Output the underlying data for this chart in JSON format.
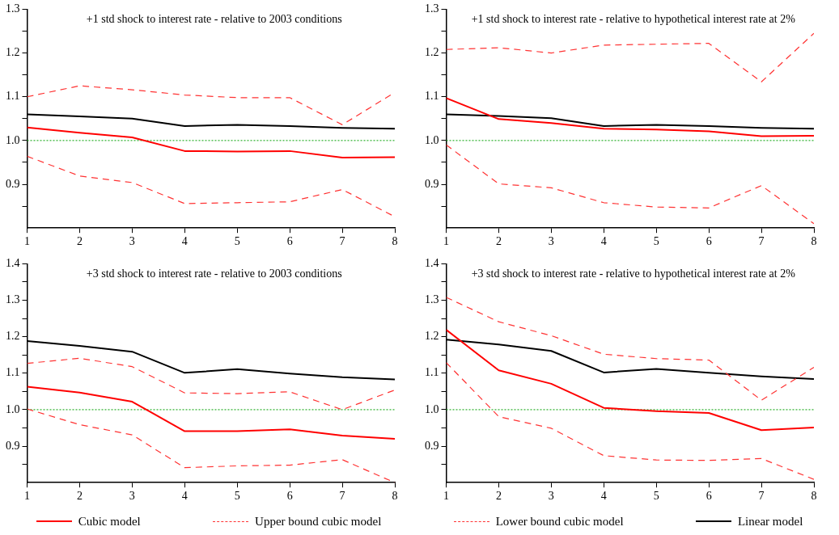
{
  "chart_data": [
    {
      "type": "line",
      "title": "+1 std shock to interest rate - relative to 2003 conditions",
      "x": [
        1,
        2,
        3,
        4,
        5,
        6,
        7,
        8
      ],
      "xlim": [
        1,
        8
      ],
      "xticks": [
        1,
        2,
        3,
        4,
        5,
        6,
        7,
        8
      ],
      "ylim": [
        0.8,
        1.3
      ],
      "yticks": [
        {
          "value": 0.85,
          "label": null
        },
        {
          "value": 0.9,
          "label": "0.9"
        },
        {
          "value": 0.95,
          "label": null
        },
        {
          "value": 1,
          "label": "1.0"
        },
        {
          "value": 1.05,
          "label": null
        },
        {
          "value": 1.1,
          "label": "1.1"
        },
        {
          "value": 1.15,
          "label": null
        },
        {
          "value": 1.2,
          "label": "1.2"
        },
        {
          "value": 1.25,
          "label": null
        },
        {
          "value": 1.3,
          "label": "1.3"
        }
      ],
      "series": [
        {
          "color": "#ff0000",
          "line_style": "solid",
          "values": [
            1.03,
            1.018,
            1.007,
            0.976,
            0.975,
            0.976,
            0.961,
            0.962
          ]
        },
        {
          "color": "#ff3333",
          "line_style": "dashed",
          "values": [
            1.1,
            1.125,
            1.116,
            1.104,
            1.098,
            1.098,
            1.036,
            1.11
          ]
        },
        {
          "color": "#ff3333",
          "line_style": "dashed",
          "values": [
            0.964,
            0.919,
            0.904,
            0.856,
            0.858,
            0.86,
            0.888,
            0.826
          ]
        },
        {
          "color": "#000000",
          "line_style": "solid",
          "values": [
            1.06,
            1.055,
            1.05,
            1.033,
            1.036,
            1.033,
            1.029,
            1.027
          ]
        }
      ],
      "ref_lines": [
        {
          "axis": "y",
          "value": 1,
          "color": "#00a000",
          "line_style": "dotted"
        }
      ]
    },
    {
      "type": "line",
      "title": "+1 std shock to interest rate - relative to hypothetical interest rate at 2%",
      "x": [
        1,
        2,
        3,
        4,
        5,
        6,
        7,
        8
      ],
      "xlim": [
        1,
        8
      ],
      "xticks": [
        1,
        2,
        3,
        4,
        5,
        6,
        7,
        8
      ],
      "ylim": [
        0.8,
        1.3
      ],
      "yticks": [
        {
          "value": 0.85,
          "label": null
        },
        {
          "value": 0.9,
          "label": "0.9"
        },
        {
          "value": 0.95,
          "label": null
        },
        {
          "value": 1,
          "label": "1.0"
        },
        {
          "value": 1.05,
          "label": null
        },
        {
          "value": 1.1,
          "label": "1.1"
        },
        {
          "value": 1.15,
          "label": null
        },
        {
          "value": 1.2,
          "label": "1.2"
        },
        {
          "value": 1.25,
          "label": null
        },
        {
          "value": 1.3,
          "label": "1.3"
        }
      ],
      "series": [
        {
          "color": "#ff0000",
          "line_style": "solid",
          "values": [
            1.097,
            1.049,
            1.04,
            1.027,
            1.025,
            1.021,
            1.01,
            1.011
          ]
        },
        {
          "color": "#ff3333",
          "line_style": "dashed",
          "values": [
            1.208,
            1.212,
            1.2,
            1.218,
            1.22,
            1.222,
            1.134,
            1.245
          ]
        },
        {
          "color": "#ff3333",
          "line_style": "dashed",
          "values": [
            0.99,
            0.901,
            0.892,
            0.858,
            0.848,
            0.846,
            0.897,
            0.81
          ]
        },
        {
          "color": "#000000",
          "line_style": "solid",
          "values": [
            1.06,
            1.056,
            1.051,
            1.033,
            1.036,
            1.033,
            1.029,
            1.027
          ]
        }
      ],
      "ref_lines": [
        {
          "axis": "y",
          "value": 1,
          "color": "#00a000",
          "line_style": "dotted"
        }
      ]
    },
    {
      "type": "line",
      "title": "+3 std shock to interest rate - relative to 2003 conditions",
      "x": [
        1,
        2,
        3,
        4,
        5,
        6,
        7,
        8
      ],
      "xlim": [
        1,
        8
      ],
      "xticks": [
        1,
        2,
        3,
        4,
        5,
        6,
        7,
        8
      ],
      "ylim": [
        0.8,
        1.4
      ],
      "yticks": [
        {
          "value": 0.85,
          "label": null
        },
        {
          "value": 0.9,
          "label": "0.9"
        },
        {
          "value": 0.95,
          "label": null
        },
        {
          "value": 1,
          "label": "1.0"
        },
        {
          "value": 1.05,
          "label": null
        },
        {
          "value": 1.1,
          "label": "1.1"
        },
        {
          "value": 1.15,
          "label": null
        },
        {
          "value": 1.2,
          "label": "1.2"
        },
        {
          "value": 1.25,
          "label": null
        },
        {
          "value": 1.3,
          "label": "1.3"
        },
        {
          "value": 1.35,
          "label": null
        },
        {
          "value": 1.4,
          "label": "1.4"
        }
      ],
      "series": [
        {
          "color": "#ff0000",
          "line_style": "solid",
          "values": [
            1.063,
            1.047,
            1.022,
            0.941,
            0.941,
            0.946,
            0.929,
            0.92
          ]
        },
        {
          "color": "#ff3333",
          "line_style": "dashed",
          "values": [
            1.127,
            1.141,
            1.118,
            1.046,
            1.044,
            1.049,
            1.0,
            1.054
          ]
        },
        {
          "color": "#ff3333",
          "line_style": "dashed",
          "values": [
            1.002,
            0.959,
            0.931,
            0.841,
            0.846,
            0.848,
            0.863,
            0.8
          ]
        },
        {
          "color": "#000000",
          "line_style": "solid",
          "values": [
            1.188,
            1.175,
            1.159,
            1.101,
            1.111,
            1.099,
            1.089,
            1.083
          ]
        }
      ],
      "ref_lines": [
        {
          "axis": "y",
          "value": 1,
          "color": "#00a000",
          "line_style": "dotted"
        }
      ]
    },
    {
      "type": "line",
      "title": "+3 std shock to interest rate - relative to hypothetical interest rate at 2%",
      "x": [
        1,
        2,
        3,
        4,
        5,
        6,
        7,
        8
      ],
      "xlim": [
        1,
        8
      ],
      "xticks": [
        1,
        2,
        3,
        4,
        5,
        6,
        7,
        8
      ],
      "ylim": [
        0.8,
        1.4
      ],
      "yticks": [
        {
          "value": 0.85,
          "label": null
        },
        {
          "value": 0.9,
          "label": "0.9"
        },
        {
          "value": 0.95,
          "label": null
        },
        {
          "value": 1,
          "label": "1.0"
        },
        {
          "value": 1.05,
          "label": null
        },
        {
          "value": 1.1,
          "label": "1.1"
        },
        {
          "value": 1.15,
          "label": null
        },
        {
          "value": 1.2,
          "label": "1.2"
        },
        {
          "value": 1.25,
          "label": null
        },
        {
          "value": 1.3,
          "label": "1.3"
        },
        {
          "value": 1.35,
          "label": null
        },
        {
          "value": 1.4,
          "label": "1.4"
        }
      ],
      "legend": "bottom",
      "series": [
        {
          "name": "Cubic model",
          "color": "#ff0000",
          "line_style": "solid",
          "values": [
            1.219,
            1.108,
            1.071,
            1.005,
            0.996,
            0.991,
            0.944,
            0.951
          ]
        },
        {
          "name": "Upper bound cubic model",
          "color": "#ff3333",
          "line_style": "dashed",
          "values": [
            1.308,
            1.241,
            1.203,
            1.152,
            1.14,
            1.136,
            1.026,
            1.116
          ]
        },
        {
          "name": "Lower bound cubic model",
          "color": "#ff3333",
          "line_style": "dashed",
          "values": [
            1.129,
            0.981,
            0.949,
            0.874,
            0.862,
            0.861,
            0.866,
            0.809
          ]
        },
        {
          "name": "Linear model",
          "color": "#000000",
          "line_style": "solid",
          "values": [
            1.192,
            1.179,
            1.161,
            1.102,
            1.112,
            1.101,
            1.091,
            1.084
          ]
        }
      ],
      "ref_lines": [
        {
          "axis": "y",
          "value": 1,
          "color": "#00a000",
          "line_style": "dotted"
        }
      ]
    }
  ]
}
